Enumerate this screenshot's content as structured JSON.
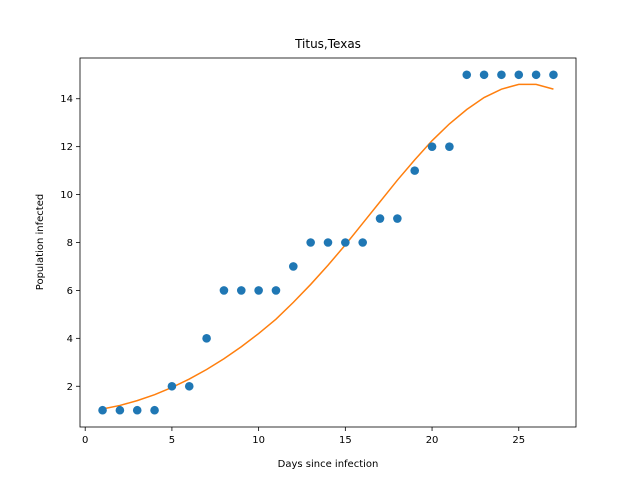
{
  "chart_data": {
    "type": "scatter",
    "title": "Titus,Texas",
    "xlabel": "Days since infection",
    "ylabel": "Population infected",
    "xlim": [
      -0.3,
      28.3
    ],
    "ylim": [
      0.3,
      15.7
    ],
    "xticks": [
      0,
      5,
      10,
      15,
      20,
      25
    ],
    "yticks": [
      2,
      4,
      6,
      8,
      10,
      12,
      14
    ],
    "grid": false,
    "series": [
      {
        "kind": "scatter",
        "color": "#1f77b4",
        "x": [
          1,
          2,
          3,
          4,
          5,
          6,
          7,
          8,
          9,
          10,
          11,
          12,
          13,
          14,
          15,
          16,
          17,
          18,
          19,
          20,
          21,
          22,
          23,
          24,
          25,
          26,
          27
        ],
        "y": [
          1,
          1,
          1,
          1,
          2,
          2,
          4,
          6,
          6,
          6,
          6,
          7,
          8,
          8,
          8,
          8,
          9,
          9,
          11,
          12,
          12,
          15,
          15,
          15,
          15,
          15,
          15
        ]
      },
      {
        "kind": "line",
        "color": "#ff7f0e",
        "x": [
          1,
          2,
          3,
          4,
          5,
          6,
          7,
          8,
          9,
          10,
          11,
          12,
          13,
          14,
          15,
          16,
          17,
          18,
          19,
          20,
          21,
          22,
          23,
          24,
          25,
          26,
          27
        ],
        "y": [
          1.05,
          1.2,
          1.4,
          1.65,
          1.95,
          2.3,
          2.7,
          3.15,
          3.65,
          4.2,
          4.8,
          5.5,
          6.25,
          7.05,
          7.9,
          8.8,
          9.7,
          10.6,
          11.45,
          12.25,
          12.95,
          13.55,
          14.05,
          14.4,
          14.6,
          14.6,
          14.4
        ]
      }
    ]
  }
}
